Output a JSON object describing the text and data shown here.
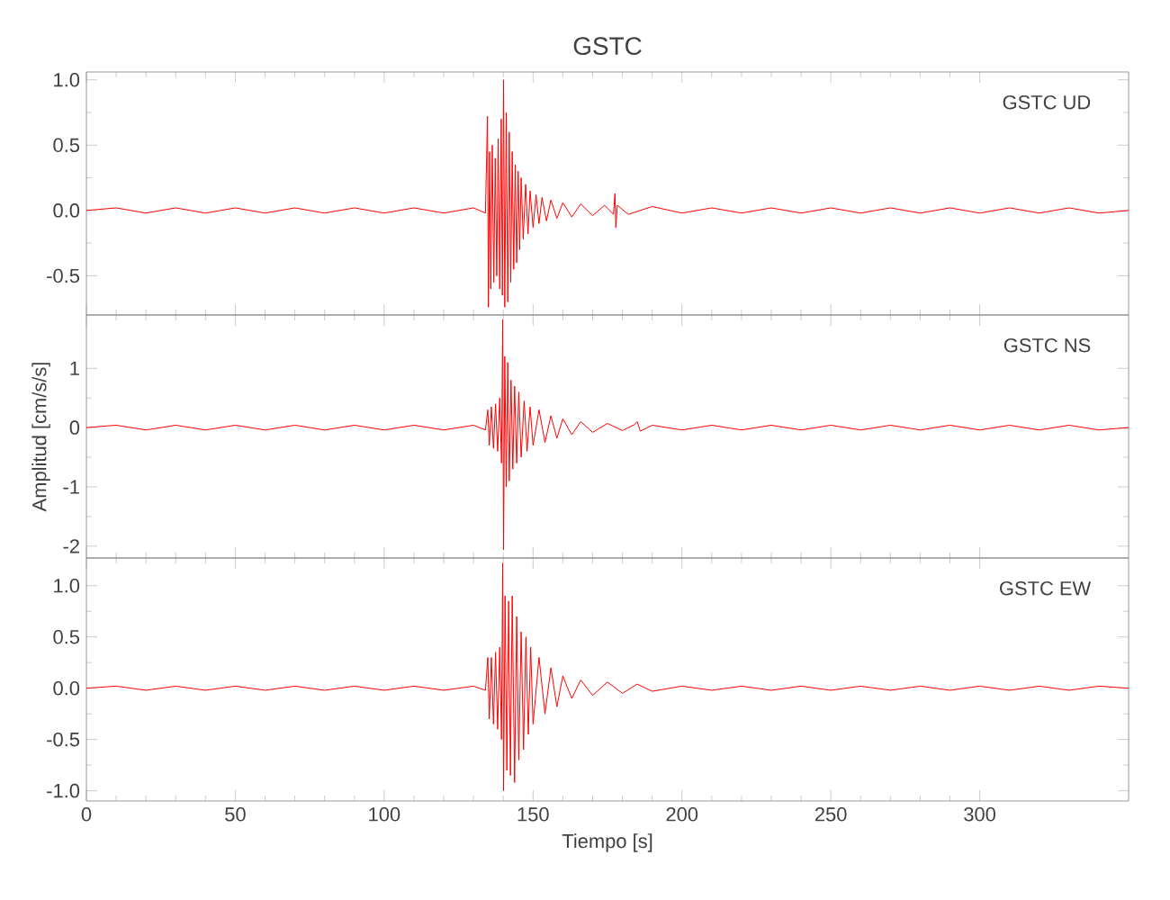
{
  "chart_data": [
    {
      "type": "line",
      "title": "GSTC",
      "annotations": [
        "GSTC UD"
      ],
      "xlim": [
        0,
        350
      ],
      "ylim": [
        -0.8,
        1.06
      ],
      "tick_labels": "y",
      "xticks": [
        0,
        50,
        100,
        150,
        200,
        250,
        300
      ],
      "yticks": [
        {
          "value": -0.5,
          "label": "-0.5"
        },
        {
          "value": 0,
          "label": "0.0"
        },
        {
          "value": 0.5,
          "label": "0.5"
        },
        {
          "value": 1,
          "label": "1.0"
        }
      ],
      "x": [
        0,
        10,
        20,
        30,
        40,
        50,
        60,
        70,
        80,
        90,
        100,
        110,
        120,
        130,
        134,
        134.7,
        135.0,
        135.4,
        135.8,
        136.3,
        136.8,
        137.3,
        137.8,
        138.3,
        138.8,
        139.3,
        139.7,
        140.1,
        140.5,
        141,
        141.5,
        142,
        142.5,
        143,
        143.5,
        144,
        144.5,
        145,
        145.5,
        146,
        146.7,
        147.5,
        148.3,
        149,
        150,
        151,
        152,
        153,
        154.5,
        156,
        158,
        160,
        163,
        166,
        170,
        174,
        177,
        177.5,
        177.8,
        178.3,
        182,
        190,
        200,
        210,
        220,
        230,
        240,
        250,
        260,
        270,
        280,
        290,
        300,
        310,
        320,
        330,
        340,
        350
      ],
      "series": [
        {
          "color": "#ff0000",
          "values": [
            0,
            0.02,
            -0.02,
            0.02,
            -0.02,
            0.02,
            -0.02,
            0.02,
            -0.02,
            0.02,
            -0.02,
            0.02,
            -0.02,
            0.02,
            -0.02,
            0.72,
            -0.74,
            0.45,
            -0.6,
            0.5,
            -0.55,
            0.4,
            -0.5,
            0.55,
            -0.6,
            0.7,
            -0.65,
            1.0,
            -0.74,
            0.75,
            -0.7,
            0.6,
            -0.55,
            0.45,
            -0.45,
            0.35,
            -0.4,
            0.3,
            -0.3,
            0.25,
            -0.22,
            0.2,
            -0.18,
            0.15,
            -0.13,
            0.12,
            -0.1,
            0.1,
            -0.08,
            0.08,
            -0.06,
            0.06,
            -0.05,
            0.05,
            -0.04,
            0.04,
            -0.03,
            0.13,
            -0.13,
            0.04,
            -0.03,
            0.03,
            -0.02,
            0.02,
            -0.02,
            0.02,
            -0.02,
            0.02,
            -0.02,
            0.02,
            -0.02,
            0.02,
            -0.02,
            0.02,
            -0.02,
            0.02,
            -0.02,
            0
          ]
        }
      ]
    },
    {
      "type": "line",
      "ylabel": "Amplitud [cm/s/s]",
      "annotations": [
        "GSTC NS"
      ],
      "xlim": [
        0,
        350
      ],
      "ylim": [
        -2.2,
        1.9
      ],
      "tick_labels": "y",
      "xticks": [
        0,
        50,
        100,
        150,
        200,
        250,
        300
      ],
      "yticks": [
        -2,
        -1,
        0,
        1
      ],
      "x": [
        0,
        10,
        20,
        30,
        40,
        50,
        60,
        70,
        80,
        90,
        100,
        110,
        120,
        130,
        134,
        134.8,
        135.3,
        136,
        136.7,
        137.4,
        138.1,
        138.8,
        139.4,
        139.8,
        140.1,
        140.5,
        141,
        141.5,
        142,
        142.6,
        143.2,
        143.8,
        144.5,
        145.2,
        146,
        147,
        148,
        149,
        150,
        152,
        154,
        156,
        158,
        160,
        163,
        166,
        170,
        175,
        180,
        184,
        185,
        186,
        190,
        200,
        210,
        220,
        230,
        240,
        250,
        260,
        270,
        280,
        290,
        300,
        310,
        320,
        330,
        340,
        350
      ],
      "series": [
        {
          "color": "#ff0000",
          "values": [
            0,
            0.04,
            -0.04,
            0.04,
            -0.04,
            0.04,
            -0.04,
            0.04,
            -0.04,
            0.04,
            -0.04,
            0.04,
            -0.04,
            0.04,
            -0.04,
            0.3,
            -0.3,
            0.35,
            -0.35,
            0.4,
            -0.4,
            0.5,
            -0.6,
            1.82,
            -2.06,
            1.2,
            -1.0,
            1.1,
            -0.9,
            0.8,
            -0.7,
            0.7,
            -0.6,
            0.6,
            -0.5,
            0.45,
            -0.4,
            0.35,
            -0.3,
            0.3,
            -0.25,
            0.2,
            -0.18,
            0.15,
            -0.12,
            0.1,
            -0.08,
            0.07,
            -0.05,
            0.05,
            0.1,
            -0.06,
            0.04,
            -0.04,
            0.04,
            -0.04,
            0.04,
            -0.04,
            0.04,
            -0.04,
            0.04,
            -0.04,
            0.04,
            -0.04,
            0.04,
            -0.04,
            0.04,
            -0.04,
            0
          ]
        }
      ]
    },
    {
      "type": "line",
      "xlabel": "Tiempo [s]",
      "annotations": [
        "GSTC EW"
      ],
      "xlim": [
        0,
        350
      ],
      "ylim": [
        -1.1,
        1.27
      ],
      "xticks": [
        0,
        50,
        100,
        150,
        200,
        250,
        300
      ],
      "yticks": [
        {
          "value": -1,
          "label": "-1.0"
        },
        {
          "value": -0.5,
          "label": "-0.5"
        },
        {
          "value": 0,
          "label": "0.0"
        },
        {
          "value": 0.5,
          "label": "0.5"
        },
        {
          "value": 1,
          "label": "1.0"
        }
      ],
      "x": [
        0,
        10,
        20,
        30,
        40,
        50,
        60,
        70,
        80,
        90,
        100,
        110,
        120,
        130,
        134,
        134.8,
        135.3,
        136,
        136.7,
        137.4,
        138.1,
        138.8,
        139.4,
        139.8,
        140.1,
        140.6,
        141.2,
        141.8,
        142.4,
        143,
        143.8,
        144.5,
        145.2,
        146,
        146.8,
        147.6,
        148.4,
        149.2,
        150,
        152,
        154,
        156,
        158,
        160,
        163,
        166,
        170,
        175,
        180,
        185,
        190,
        200,
        210,
        220,
        230,
        240,
        250,
        260,
        270,
        280,
        290,
        300,
        310,
        320,
        330,
        340,
        350
      ],
      "series": [
        {
          "color": "#ff0000",
          "values": [
            0,
            0.02,
            -0.02,
            0.02,
            -0.02,
            0.02,
            -0.02,
            0.02,
            -0.02,
            0.02,
            -0.02,
            0.02,
            -0.02,
            0.02,
            -0.02,
            0.3,
            -0.3,
            0.3,
            -0.35,
            0.35,
            -0.4,
            0.4,
            -0.5,
            1.22,
            -1.0,
            0.9,
            -0.8,
            0.85,
            -0.85,
            0.9,
            -0.92,
            0.7,
            -0.7,
            0.55,
            -0.6,
            0.5,
            -0.45,
            0.4,
            -0.35,
            0.3,
            -0.25,
            0.2,
            -0.18,
            0.12,
            -0.1,
            0.08,
            -0.07,
            0.06,
            -0.05,
            0.04,
            -0.03,
            0.02,
            -0.02,
            0.02,
            -0.02,
            0.02,
            -0.02,
            0.02,
            -0.02,
            0.02,
            -0.02,
            0.02,
            -0.02,
            0.02,
            -0.02,
            0.02,
            0
          ]
        }
      ]
    }
  ]
}
